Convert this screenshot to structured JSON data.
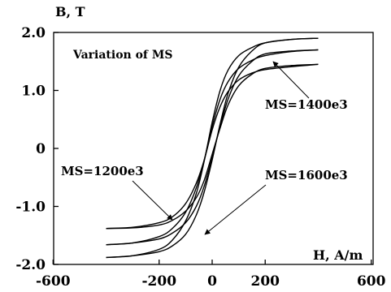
{
  "chart_data": {
    "type": "line",
    "title": "Variation of MS",
    "xlabel": "H, A/m",
    "ylabel": "B, T",
    "xlim": [
      -600,
      600
    ],
    "ylim": [
      -2.0,
      2.0
    ],
    "x_ticks": [
      {
        "value": -600,
        "label": "-600"
      },
      {
        "value": -200,
        "label": "-200"
      },
      {
        "value": 0,
        "label": "0"
      },
      {
        "value": 200,
        "label": "200"
      },
      {
        "value": 600,
        "label": "600"
      }
    ],
    "y_ticks": [
      {
        "value": 2.0,
        "label": "2.0"
      },
      {
        "value": 1.0,
        "label": "1.0"
      },
      {
        "value": 0,
        "label": "0"
      },
      {
        "value": -1.0,
        "label": "-1.0"
      },
      {
        "value": -2.0,
        "label": "-2.0"
      }
    ],
    "grid": false,
    "series": [
      {
        "name": "MS=1200e3",
        "upper_branch": {
          "x": [
            -400,
            -300,
            -200,
            -150,
            -100,
            -60,
            -30,
            0,
            30,
            60,
            100,
            150,
            200,
            300,
            400
          ],
          "y": [
            -1.38,
            -1.36,
            -1.28,
            -1.18,
            -0.95,
            -0.6,
            -0.2,
            0.32,
            0.72,
            0.98,
            1.18,
            1.3,
            1.36,
            1.41,
            1.45
          ]
        },
        "lower_branch": {
          "x": [
            400,
            300,
            200,
            150,
            100,
            60,
            30,
            0,
            -30,
            -60,
            -100,
            -150,
            -200,
            -300,
            -400
          ],
          "y": [
            1.45,
            1.43,
            1.38,
            1.28,
            1.08,
            0.75,
            0.35,
            -0.1,
            -0.55,
            -0.85,
            -1.08,
            -1.24,
            -1.32,
            -1.37,
            -1.38
          ]
        }
      },
      {
        "name": "MS=1400e3",
        "upper_branch": {
          "x": [
            -400,
            -300,
            -200,
            -150,
            -100,
            -60,
            -30,
            0,
            30,
            60,
            100,
            150,
            200,
            300,
            400
          ],
          "y": [
            -1.66,
            -1.63,
            -1.52,
            -1.38,
            -1.1,
            -0.68,
            -0.2,
            0.38,
            0.85,
            1.15,
            1.38,
            1.52,
            1.6,
            1.67,
            1.7
          ]
        },
        "lower_branch": {
          "x": [
            400,
            300,
            200,
            150,
            100,
            60,
            30,
            0,
            -30,
            -60,
            -100,
            -150,
            -200,
            -300,
            -400
          ],
          "y": [
            1.7,
            1.68,
            1.63,
            1.5,
            1.25,
            0.85,
            0.38,
            -0.15,
            -0.65,
            -1.0,
            -1.28,
            -1.46,
            -1.56,
            -1.63,
            -1.66
          ]
        }
      },
      {
        "name": "MS=1600e3",
        "upper_branch": {
          "x": [
            -400,
            -300,
            -200,
            -150,
            -100,
            -60,
            -30,
            0,
            30,
            60,
            100,
            150,
            200,
            300,
            400
          ],
          "y": [
            -1.88,
            -1.85,
            -1.74,
            -1.58,
            -1.25,
            -0.78,
            -0.22,
            0.45,
            1.0,
            1.35,
            1.6,
            1.74,
            1.82,
            1.88,
            1.9
          ]
        },
        "lower_branch": {
          "x": [
            400,
            300,
            200,
            150,
            100,
            60,
            30,
            0,
            -30,
            -60,
            -100,
            -150,
            -200,
            -300,
            -400
          ],
          "y": [
            1.9,
            1.88,
            1.82,
            1.68,
            1.4,
            0.95,
            0.42,
            -0.2,
            -0.75,
            -1.15,
            -1.48,
            -1.68,
            -1.78,
            -1.85,
            -1.88
          ]
        }
      }
    ],
    "annotations": [
      {
        "text": "MS=1400e3",
        "points_to": "MS=1400e3"
      },
      {
        "text": "MS=1200e3",
        "points_to": "MS=1200e3"
      },
      {
        "text": "MS=1600e3",
        "points_to": "MS=1600e3"
      }
    ]
  }
}
